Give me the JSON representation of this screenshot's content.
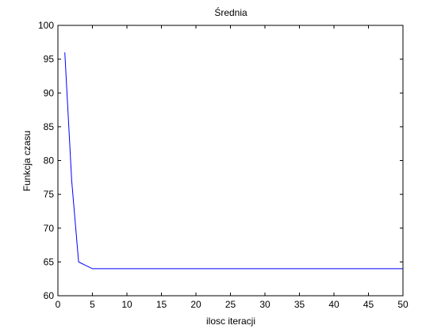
{
  "chart_data": {
    "type": "line",
    "title": "Średnia",
    "xlabel": "ilosc iteracji",
    "ylabel": "Funkcja czasu",
    "xlim": [
      0,
      50
    ],
    "ylim": [
      60,
      100
    ],
    "xticks": [
      0,
      5,
      10,
      15,
      20,
      25,
      30,
      35,
      40,
      45,
      50
    ],
    "yticks": [
      60,
      65,
      70,
      75,
      80,
      85,
      90,
      95,
      100
    ],
    "grid": false,
    "series": [
      {
        "color": "#0000ff",
        "x": [
          1,
          2,
          3,
          4,
          5,
          6,
          7,
          8,
          9,
          10,
          11,
          12,
          13,
          14,
          15,
          16,
          17,
          18,
          19,
          20,
          21,
          22,
          23,
          24,
          25,
          26,
          27,
          28,
          29,
          30,
          31,
          32,
          33,
          34,
          35,
          36,
          37,
          38,
          39,
          40,
          41,
          42,
          43,
          44,
          45,
          46,
          47,
          48,
          49,
          50
        ],
        "y": [
          96,
          77,
          65,
          64.5,
          64,
          64,
          64,
          64,
          64,
          64,
          64,
          64,
          64,
          64,
          64,
          64,
          64,
          64,
          64,
          64,
          64,
          64,
          64,
          64,
          64,
          64,
          64,
          64,
          64,
          64,
          64,
          64,
          64,
          64,
          64,
          64,
          64,
          64,
          64,
          64,
          64,
          64,
          64,
          64,
          64,
          64,
          64,
          64,
          64,
          64
        ]
      }
    ]
  }
}
